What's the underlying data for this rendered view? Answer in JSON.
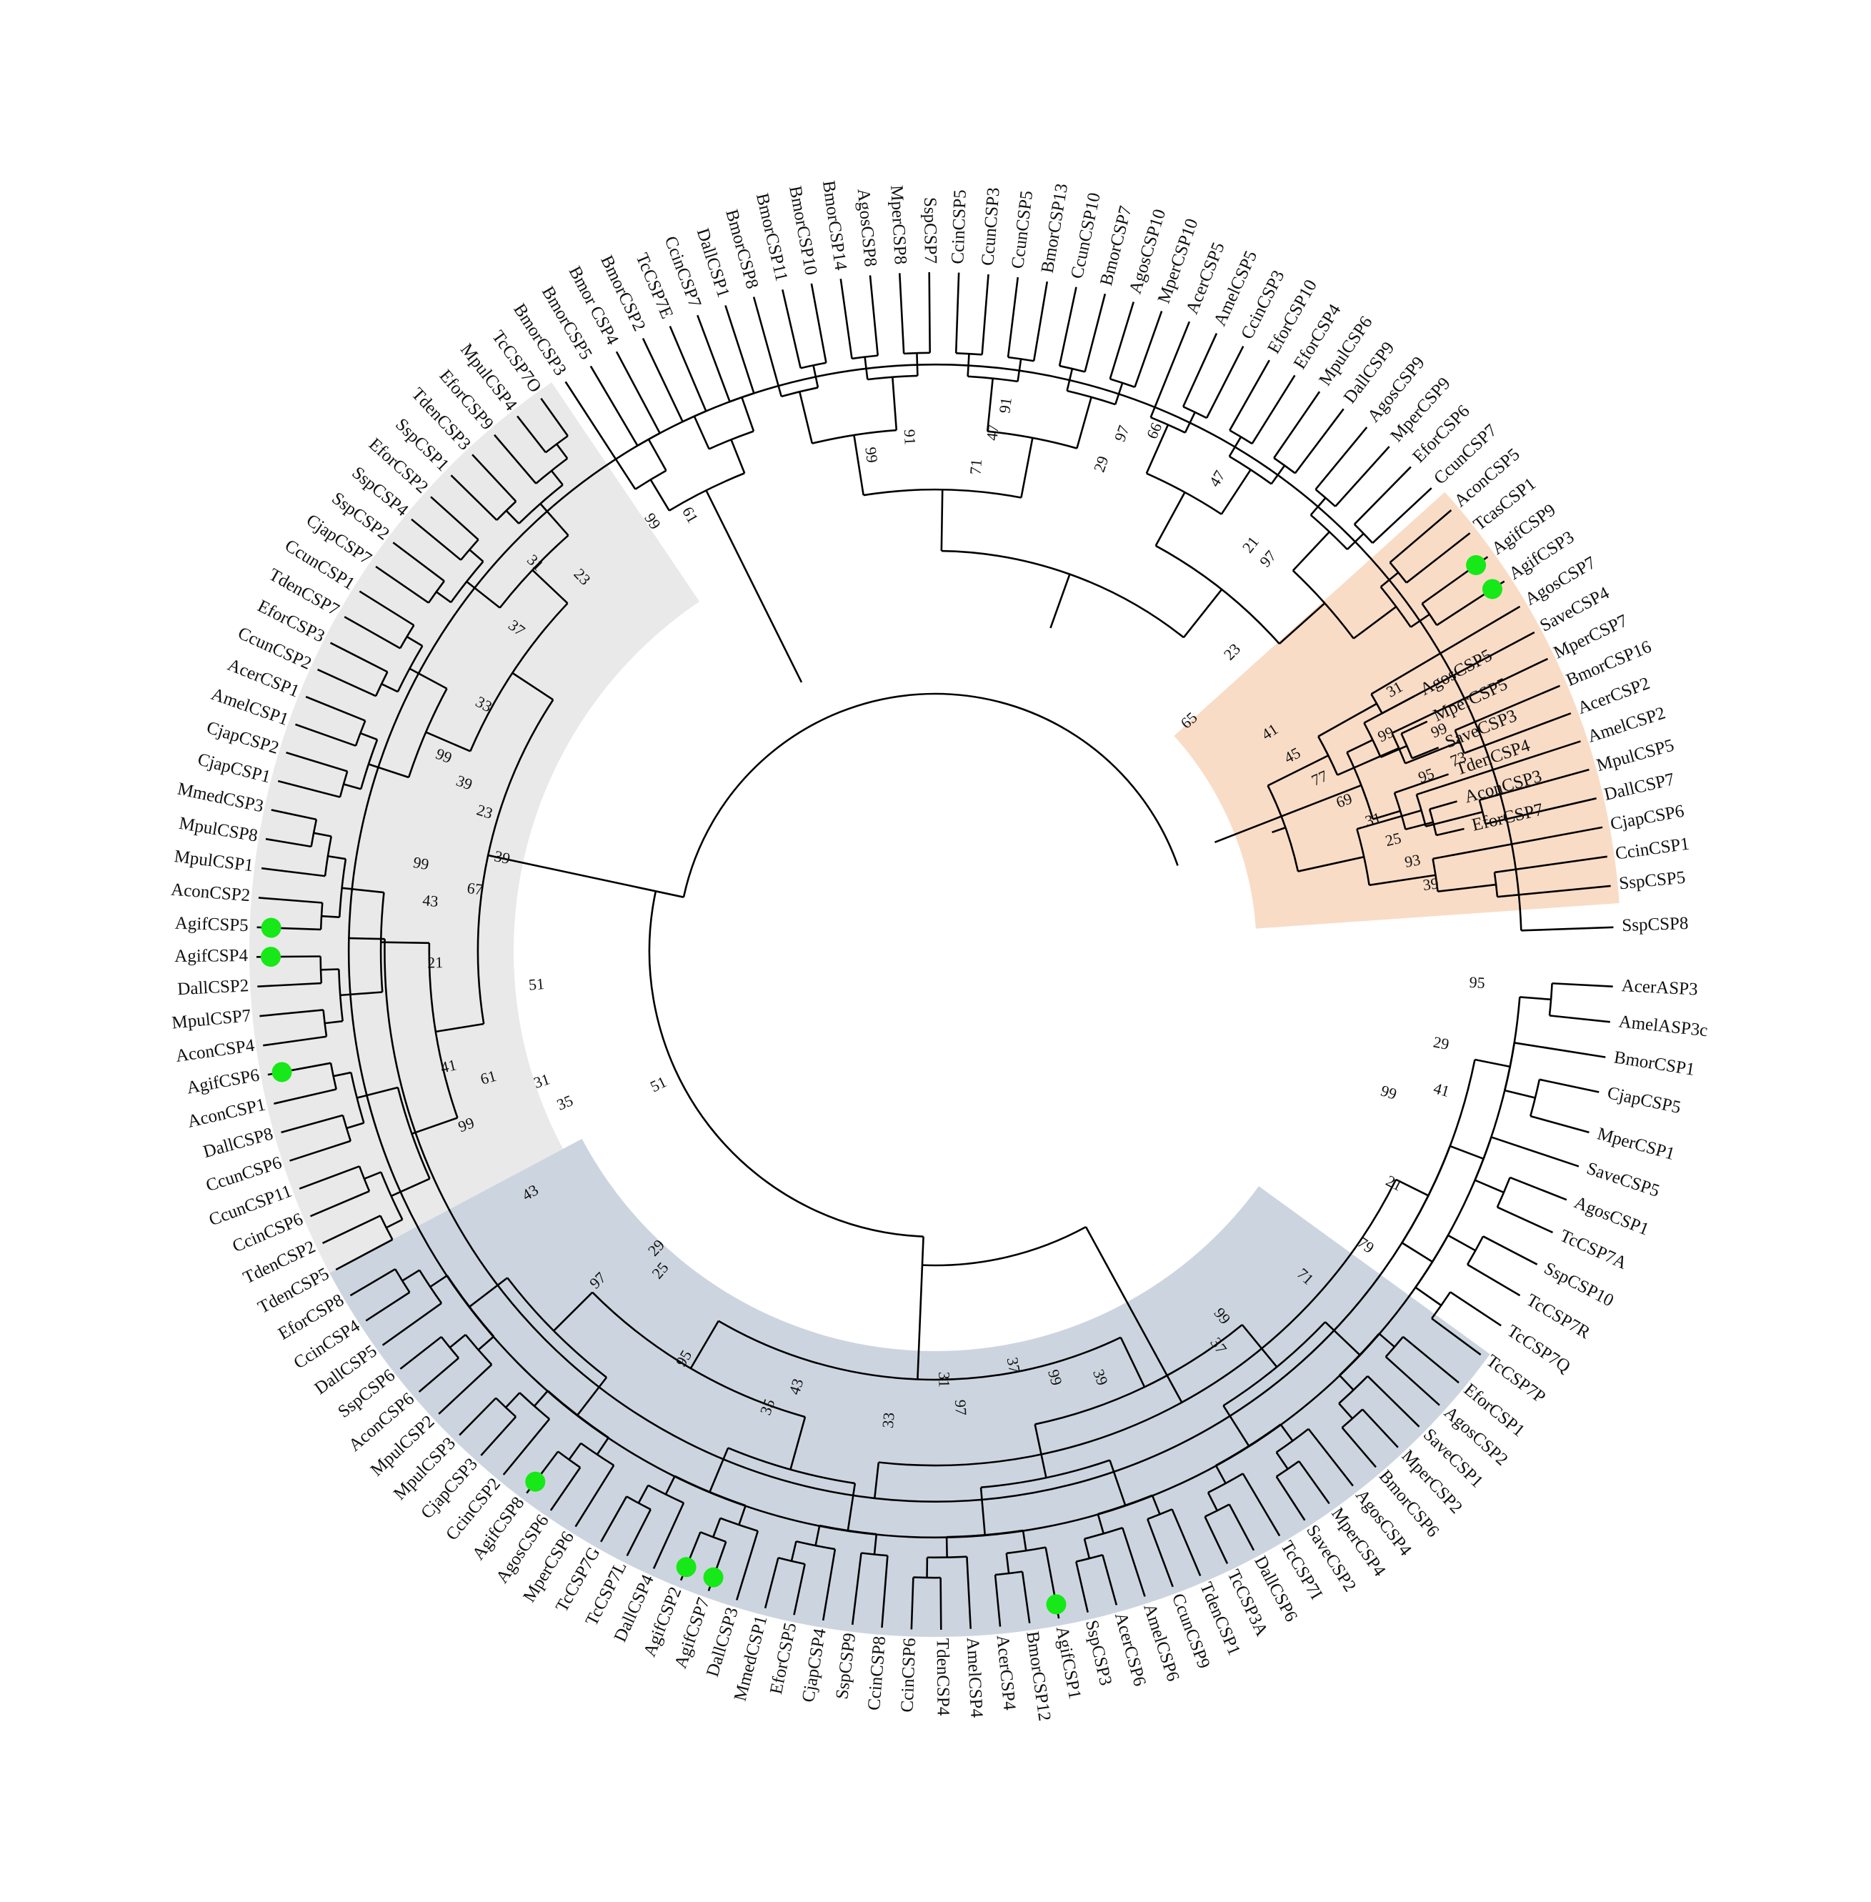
{
  "colors": {
    "sector_orange": "#f9dcc6",
    "sector_grey": "#e9e9e9",
    "sector_blue": "#ccd5df",
    "marker_green": "#17e817",
    "branch": "#000000"
  },
  "marker_icon": "green-dot",
  "leaves": [
    {
      "label": "SspCSP8",
      "angle": 358
    },
    {
      "label": "AcerASP3",
      "angle": 3
    },
    {
      "label": "AmelASP3c",
      "angle": 6
    },
    {
      "label": "BmorCSP1",
      "angle": 9
    },
    {
      "label": "CjapCSP5",
      "angle": 12
    },
    {
      "label": "MperCSP1",
      "angle": 15.5
    },
    {
      "label": "SaveCSP5",
      "angle": 18.5
    },
    {
      "label": "AgosCSP1",
      "angle": 21.5
    },
    {
      "label": "TcCSP7A",
      "angle": 24.5
    },
    {
      "label": "SspCSP10",
      "angle": 27.5
    },
    {
      "label": "TcCSP7R",
      "angle": 30.5
    },
    {
      "label": "TcCSP7Q",
      "angle": 33.5
    },
    {
      "label": "TcCSP7P",
      "angle": 36.5
    },
    {
      "label": "EforCSP1",
      "angle": 39.5
    },
    {
      "label": "AgosCSP2",
      "angle": 42
    },
    {
      "label": "SaveCSP1",
      "angle": 44.5
    },
    {
      "label": "MperCSP2",
      "angle": 47
    },
    {
      "label": "BmorCSP6",
      "angle": 49.5
    },
    {
      "label": "AgosCSP4",
      "angle": 52
    },
    {
      "label": "MperCSP4",
      "angle": 54.5
    },
    {
      "label": "SaveCSP2",
      "angle": 57
    },
    {
      "label": "TcCSP7I",
      "angle": 59.5
    },
    {
      "label": "DallCSP6",
      "angle": 62
    },
    {
      "label": "TcCSP3A",
      "angle": 64.5
    },
    {
      "label": "TdenCSP1",
      "angle": 67
    },
    {
      "label": "CcunCSP9",
      "angle": 69.5
    },
    {
      "label": "AmelCSP6",
      "angle": 72
    },
    {
      "label": "AcerCSP6",
      "angle": 74.5
    },
    {
      "label": "SspCSP3",
      "angle": 77
    },
    {
      "label": "AgifCSP1",
      "angle": 79.5,
      "marker": true
    },
    {
      "label": "BmorCSP12",
      "angle": 82
    },
    {
      "label": "AcerCSP4",
      "angle": 84.5
    },
    {
      "label": "AmelCSP4",
      "angle": 87
    },
    {
      "label": "TdenCSP4",
      "angle": 89.5
    },
    {
      "label": "CcinCSP6",
      "angle": 92
    },
    {
      "label": "CcinCSP8",
      "angle": 94.5
    },
    {
      "label": "SspCSP9",
      "angle": 97
    },
    {
      "label": "CjapCSP4",
      "angle": 99.5
    },
    {
      "label": "EforCSP5",
      "angle": 102
    },
    {
      "label": "MmedCSP1",
      "angle": 104.5
    },
    {
      "label": "DallCSP3",
      "angle": 107
    },
    {
      "label": "AgifCSP7",
      "angle": 109.5,
      "marker": true
    },
    {
      "label": "AgifCSP2",
      "angle": 112,
      "marker": true
    },
    {
      "label": "DallCSP4",
      "angle": 114.5
    },
    {
      "label": "TcCSP7L",
      "angle": 117
    },
    {
      "label": "TcCSP7G",
      "angle": 119.5
    },
    {
      "label": "MperCSP6",
      "angle": 122
    },
    {
      "label": "AgosCSP6",
      "angle": 124.5
    },
    {
      "label": "AgifCSP8",
      "angle": 127,
      "marker": true
    },
    {
      "label": "CcinCSP2",
      "angle": 129.5
    },
    {
      "label": "CjapCSP3",
      "angle": 132
    },
    {
      "label": "MpulCSP3",
      "angle": 134.5
    },
    {
      "label": "MpulCSP2",
      "angle": 137
    },
    {
      "label": "AconCSP6",
      "angle": 139.5
    },
    {
      "label": "SspCSP6",
      "angle": 142
    },
    {
      "label": "DallCSP5",
      "angle": 144.5
    },
    {
      "label": "CcinCSP4",
      "angle": 147
    },
    {
      "label": "EforCSP8",
      "angle": 149.5
    },
    {
      "label": "TdenCSP5",
      "angle": 152
    },
    {
      "label": "TdenCSP2",
      "angle": 154.5
    },
    {
      "label": "CcinCSP6",
      "angle": 157
    },
    {
      "label": "CcunCSP11",
      "angle": 159.5
    },
    {
      "label": "CcunCSP6",
      "angle": 162
    },
    {
      "label": "DallCSP8",
      "angle": 164.5
    },
    {
      "label": "AconCSP1",
      "angle": 167
    },
    {
      "label": "AgifCSP6",
      "angle": 169.5,
      "marker": true
    },
    {
      "label": "AconCSP4",
      "angle": 172
    },
    {
      "label": "MpulCSP7",
      "angle": 174.5
    },
    {
      "label": "DallCSP2",
      "angle": 177
    },
    {
      "label": "AgifCSP4",
      "angle": 179.5,
      "marker": true
    },
    {
      "label": "AgifCSP5",
      "angle": 182,
      "marker": true
    },
    {
      "label": "AconCSP2",
      "angle": 184.5
    },
    {
      "label": "MpulCSP1",
      "angle": 187
    },
    {
      "label": "MpulCSP8",
      "angle": 189.5
    },
    {
      "label": "MmedCSP3",
      "angle": 192
    },
    {
      "label": "CjapCSP1",
      "angle": 194.5
    },
    {
      "label": "CjapCSP2",
      "angle": 197
    },
    {
      "label": "AmelCSP1",
      "angle": 199.5
    },
    {
      "label": "AcerCSP1",
      "angle": 202
    },
    {
      "label": "CcunCSP2",
      "angle": 204.5
    },
    {
      "label": "EforCSP3",
      "angle": 207
    },
    {
      "label": "TdenCSP7",
      "angle": 209.5
    },
    {
      "label": "CcunCSP1",
      "angle": 212
    },
    {
      "label": "CjapCSP7",
      "angle": 214.5
    },
    {
      "label": "SspCSP2",
      "angle": 217
    },
    {
      "label": "SspCSP4",
      "angle": 219.5
    },
    {
      "label": "EforCSP2",
      "angle": 222
    },
    {
      "label": "SspCSP1",
      "angle": 224.5
    },
    {
      "label": "TdenCSP3",
      "angle": 227
    },
    {
      "label": "EforCSP9",
      "angle": 229.5
    },
    {
      "label": "MpulCSP4",
      "angle": 232
    },
    {
      "label": "TcCSP7O",
      "angle": 234.5
    },
    {
      "label": "BmorCSP3",
      "angle": 237
    },
    {
      "label": "BmorCSP5",
      "angle": 239.5
    },
    {
      "label": "Bmor CSP4",
      "angle": 242
    },
    {
      "label": "BmorCSP2",
      "angle": 244.5
    },
    {
      "label": "TcCSP7E",
      "angle": 247
    },
    {
      "label": "CcinCSP7",
      "angle": 249.5
    },
    {
      "label": "DallCSP1",
      "angle": 252
    },
    {
      "label": "BmorCSP8",
      "angle": 254.5
    },
    {
      "label": "BmorCSP11",
      "angle": 257
    },
    {
      "label": "BmorCSP10",
      "angle": 259.5
    },
    {
      "label": "BmorCSP14",
      "angle": 262
    },
    {
      "label": "AgosCSP8",
      "angle": 264.5
    },
    {
      "label": "MperCSP8",
      "angle": 267
    },
    {
      "label": "SspCSP7",
      "angle": 269.5
    },
    {
      "label": "CcinCSP5",
      "angle": 272
    },
    {
      "label": "CcunCSP3",
      "angle": 274.5
    },
    {
      "label": "CcunCSP5",
      "angle": 277
    },
    {
      "label": "BmorCSP13",
      "angle": 279.5
    },
    {
      "label": "CcunCSP10",
      "angle": 282
    },
    {
      "label": "BmorCSP7",
      "angle": 284.5
    },
    {
      "label": "AgosCSP10",
      "angle": 287
    },
    {
      "label": "MperCSP10",
      "angle": 289.5
    },
    {
      "label": "AcerCSP5",
      "angle": 292
    },
    {
      "label": "AmelCSP5",
      "angle": 294.5
    },
    {
      "label": "CcinCSP3",
      "angle": 297
    },
    {
      "label": "EforCSP10",
      "angle": 299.5
    },
    {
      "label": "EforCSP4",
      "angle": 302
    },
    {
      "label": "MpulCSP6",
      "angle": 304.5
    },
    {
      "label": "DallCSP9",
      "angle": 307
    },
    {
      "label": "AgosCSP9",
      "angle": 309.5
    },
    {
      "label": "MperCSP9",
      "angle": 312
    },
    {
      "label": "EforCSP6",
      "angle": 314.5
    },
    {
      "label": "CcunCSP7",
      "angle": 317
    },
    {
      "label": "AconCSP5",
      "angle": 319.5
    },
    {
      "label": "TcasCSP1",
      "angle": 322
    },
    {
      "label": "AgifCSP9",
      "angle": 324.5,
      "marker": true
    },
    {
      "label": "AgifCSP3",
      "angle": 327,
      "marker": true
    },
    {
      "label": "AgosCSP7",
      "angle": 329.5
    },
    {
      "label": "SaveCSP4",
      "angle": 332
    },
    {
      "label": "MperCSP7",
      "angle": 334.5
    },
    {
      "label": "BmorCSP16",
      "angle": 337
    },
    {
      "label": "AcerCSP2",
      "angle": 339.5
    },
    {
      "label": "AmelCSP2",
      "angle": 342
    },
    {
      "label": "MpulCSP5",
      "angle": 344.5
    },
    {
      "label": "DallCSP7",
      "angle": 347
    },
    {
      "label": "CjapCSP6",
      "angle": 349.5
    },
    {
      "label": "CcinCSP1",
      "angle": 352
    },
    {
      "label": "SspCSP5",
      "angle": 354.5
    }
  ],
  "upper_right_leaves": [
    {
      "label": "AgosCSP5",
      "angle": 332
    },
    {
      "label": "MperCSP5",
      "angle": 335
    },
    {
      "label": "SaveCSP3",
      "angle": 338
    },
    {
      "label": "TdenCSP4",
      "angle": 341
    },
    {
      "label": "AconCSP3",
      "angle": 344
    },
    {
      "label": "EforCSP7",
      "angle": 347
    }
  ],
  "supports": [
    {
      "value": "95",
      "angle": 3.5,
      "r": 760
    },
    {
      "value": "29",
      "angle": 10.5,
      "r": 720
    },
    {
      "value": "41",
      "angle": 15.5,
      "r": 735
    },
    {
      "value": "99",
      "angle": 17.5,
      "r": 665
    },
    {
      "value": "21",
      "angle": 27,
      "r": 720
    },
    {
      "value": "79",
      "angle": 34.5,
      "r": 730
    },
    {
      "value": "71",
      "angle": 41.5,
      "r": 690
    },
    {
      "value": "99",
      "angle": 52,
      "r": 650
    },
    {
      "value": "37",
      "angle": 54.5,
      "r": 680
    },
    {
      "value": "39",
      "angle": 69,
      "r": 640
    },
    {
      "value": "99",
      "angle": 74.5,
      "r": 620
    },
    {
      "value": "37",
      "angle": 79.5,
      "r": 590
    },
    {
      "value": "97",
      "angle": 87,
      "r": 640
    },
    {
      "value": "31",
      "angle": 89,
      "r": 600
    },
    {
      "value": "33",
      "angle": 95.5,
      "r": 660
    },
    {
      "value": "43",
      "angle": 107.5,
      "r": 640
    },
    {
      "value": "35",
      "angle": 110,
      "r": 680
    },
    {
      "value": "95",
      "angle": 121.5,
      "r": 670
    },
    {
      "value": "25",
      "angle": 130.5,
      "r": 590
    },
    {
      "value": "29",
      "angle": 133,
      "r": 570
    },
    {
      "value": "97",
      "angle": 135.5,
      "r": 660
    },
    {
      "value": "43",
      "angle": 149,
      "r": 660
    },
    {
      "value": "51",
      "angle": 154,
      "r": 430
    },
    {
      "value": "99",
      "angle": 159.5,
      "r": 700
    },
    {
      "value": "35",
      "angle": 157.5,
      "r": 560
    },
    {
      "value": "31",
      "angle": 161.5,
      "r": 580
    },
    {
      "value": "61",
      "angle": 164,
      "r": 650
    },
    {
      "value": "41",
      "angle": 166.5,
      "r": 700
    },
    {
      "value": "51",
      "angle": 175,
      "r": 560
    },
    {
      "value": "21",
      "angle": 178.5,
      "r": 700
    },
    {
      "value": "43",
      "angle": 185.5,
      "r": 710
    },
    {
      "value": "67",
      "angle": 187.5,
      "r": 650
    },
    {
      "value": "99",
      "angle": 189.5,
      "r": 730
    },
    {
      "value": "39",
      "angle": 192,
      "r": 620
    },
    {
      "value": "23",
      "angle": 197,
      "r": 660
    },
    {
      "value": "39",
      "angle": 199.5,
      "r": 700
    },
    {
      "value": "99",
      "angle": 201.5,
      "r": 740
    },
    {
      "value": "33",
      "angle": 208.5,
      "r": 720
    },
    {
      "value": "37",
      "angle": 217.5,
      "r": 740
    },
    {
      "value": "31",
      "angle": 224,
      "r": 780
    },
    {
      "value": "23",
      "angle": 226.5,
      "r": 720
    },
    {
      "value": "99",
      "angle": 236.5,
      "r": 720
    },
    {
      "value": "61",
      "angle": 240.5,
      "r": 700
    },
    {
      "value": "99",
      "angle": 262.5,
      "r": 700
    },
    {
      "value": "91",
      "angle": 267,
      "r": 720
    },
    {
      "value": "71",
      "angle": 275,
      "r": 680
    },
    {
      "value": "47",
      "angle": 276.5,
      "r": 730
    },
    {
      "value": "91",
      "angle": 277.5,
      "r": 770
    },
    {
      "value": "29",
      "angle": 289,
      "r": 720
    },
    {
      "value": "97",
      "angle": 290,
      "r": 770
    },
    {
      "value": "66",
      "angle": 293,
      "r": 790
    },
    {
      "value": "47",
      "angle": 301,
      "r": 770
    },
    {
      "value": "21",
      "angle": 308,
      "r": 720
    },
    {
      "value": "97",
      "angle": 310.5,
      "r": 720
    },
    {
      "value": "23",
      "angle": 315,
      "r": 590
    },
    {
      "value": "65",
      "angle": 318,
      "r": 480
    },
    {
      "value": "41",
      "angle": 327,
      "r": 560
    },
    {
      "value": "45",
      "angle": 331.5,
      "r": 570
    },
    {
      "value": "77",
      "angle": 336,
      "r": 590
    },
    {
      "value": "69",
      "angle": 340,
      "r": 610
    },
    {
      "value": "31",
      "angle": 343.5,
      "r": 640
    },
    {
      "value": "25",
      "angle": 346.5,
      "r": 660
    },
    {
      "value": "93",
      "angle": 349.5,
      "r": 680
    },
    {
      "value": "39",
      "angle": 352.5,
      "r": 700
    },
    {
      "value": "99",
      "angle": 334.5,
      "r": 700
    },
    {
      "value": "31",
      "angle": 330.5,
      "r": 740
    },
    {
      "value": "95",
      "angle": 340.5,
      "r": 730
    },
    {
      "value": "99",
      "angle": 336.5,
      "r": 770
    },
    {
      "value": "73",
      "angle": 340,
      "r": 780
    }
  ]
}
